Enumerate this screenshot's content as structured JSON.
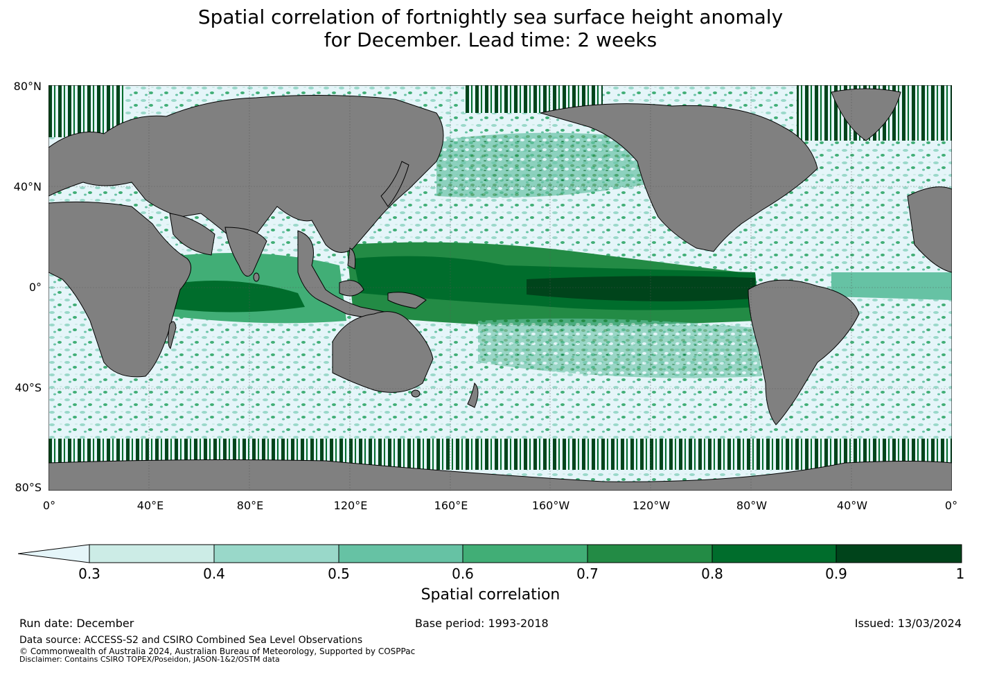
{
  "title": {
    "line1": "Spatial correlation of fortnightly sea surface height anomaly",
    "line2": "for December. Lead time: 2 weeks"
  },
  "map": {
    "lat_labels": [
      "80°N",
      "40°N",
      "0°",
      "40°S",
      "80°S"
    ],
    "lon_labels": [
      "0°",
      "40°E",
      "80°E",
      "120°E",
      "160°E",
      "160°W",
      "120°W",
      "80°W",
      "40°W",
      "0°"
    ],
    "colors": {
      "land": "#808080",
      "ocean_low": "#e5f5f9",
      "band_0_3": "#ccece6",
      "band_0_4": "#99d8c9",
      "band_0_5": "#66c2a4",
      "band_0_6": "#41ae76",
      "band_0_7": "#238b45",
      "band_0_8": "#006d2c",
      "band_0_9": "#00441b"
    }
  },
  "colorbar": {
    "ticks": [
      "0.3",
      "0.4",
      "0.5",
      "0.6",
      "0.7",
      "0.8",
      "0.9",
      "1"
    ],
    "label": "Spatial correlation"
  },
  "footer": {
    "run_date": "Run date: December",
    "base_period": "Base period: 1993-2018",
    "issued": "Issued: 13/03/2024",
    "data_source": "Data source: ACCESS-S2 and CSIRO Combined Sea Level Observations",
    "copyright": "© Commonwealth of Australia 2024, Australian Bureau of Meteorology, Supported by COSPPac",
    "disclaimer": "Disclaimer: Contains CSIRO TOPEX/Poseidon, JASON-1&2/OSTM data"
  }
}
